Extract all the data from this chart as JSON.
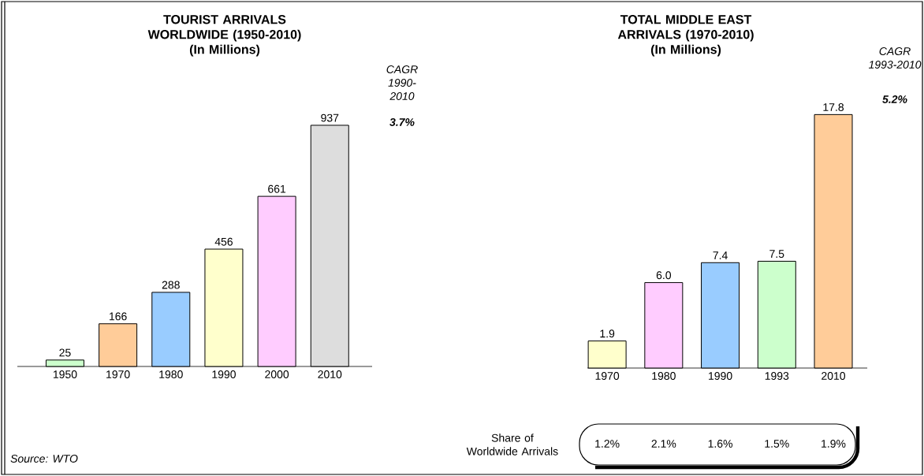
{
  "chart_data": [
    {
      "type": "bar",
      "title": "TOURIST ARRIVALS WORLDWIDE (1950-2010)",
      "subtitle": "(In Millions)",
      "categories": [
        "1950",
        "1970",
        "1980",
        "1990",
        "2000",
        "2010"
      ],
      "values": [
        25,
        166,
        288,
        456,
        661,
        937
      ],
      "value_labels": [
        "25",
        "166",
        "288",
        "456",
        "661",
        "937"
      ],
      "colors": [
        "#ccffcc",
        "#ffcc99",
        "#99ccff",
        "#ffffcc",
        "#ffccff",
        "#dddddd"
      ],
      "annotations": [
        "CAGR 1990-2010",
        "3.7%",
        "Source: WTO"
      ]
    },
    {
      "type": "bar",
      "title": "TOTAL MIDDLE EAST ARRIVALS (1970-2010)",
      "subtitle": "(In Millions)",
      "categories": [
        "1970",
        "1980",
        "1990",
        "1993",
        "2010"
      ],
      "values": [
        1.9,
        6.0,
        7.4,
        7.5,
        17.8
      ],
      "value_labels": [
        "1.9",
        "6.0",
        "7.4",
        "7.5",
        "17.8"
      ],
      "colors": [
        "#ffffcc",
        "#ffccff",
        "#99ccff",
        "#ccffcc",
        "#ffcc99"
      ],
      "annotations": [
        "CAGR 1993-2010",
        "5.2%",
        "Share of Worldwide Arrivals",
        "1.2%",
        "2.1%",
        "1.6%",
        "1.5%",
        "1.9%"
      ]
    }
  ]
}
